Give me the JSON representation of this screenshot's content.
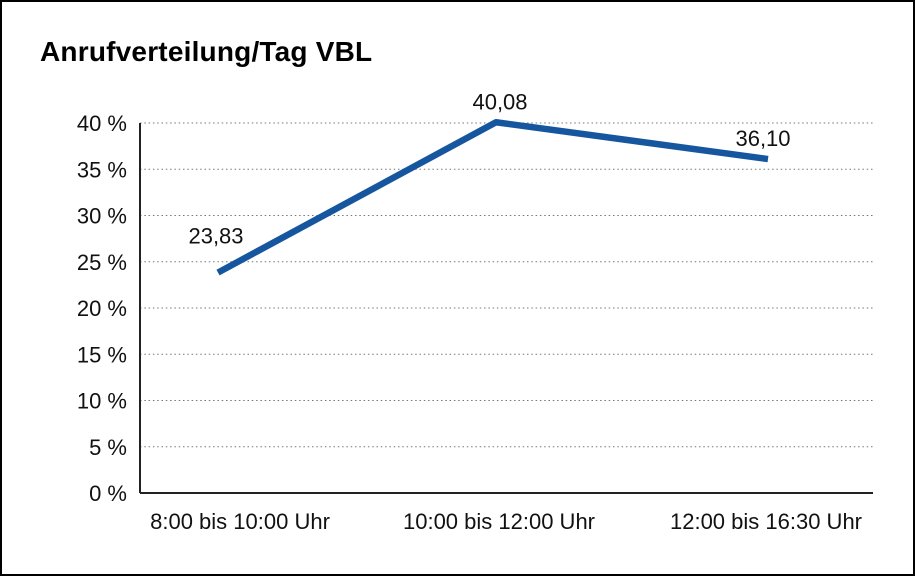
{
  "frame": {
    "background": "#ffffff",
    "border_color": "#000000"
  },
  "chart_data": {
    "type": "line",
    "title": "Anrufverteilung/Tag VBL",
    "categories": [
      "8:00 bis 10:00 Uhr",
      "10:00 bis 12:00 Uhr",
      "12:00 bis 16:30 Uhr"
    ],
    "series": [
      {
        "values": [
          23.83,
          40.08,
          36.1
        ],
        "data_labels": [
          "23,83",
          "40,08",
          "36,10"
        ],
        "color": "#15569f"
      }
    ],
    "xlabel": "",
    "ylabel": "",
    "ylim": [
      0,
      40
    ],
    "y_ticks": [
      {
        "value": 0,
        "label": "0 %"
      },
      {
        "value": 5,
        "label": "5 %"
      },
      {
        "value": 10,
        "label": "10 %"
      },
      {
        "value": 15,
        "label": "15 %"
      },
      {
        "value": 20,
        "label": "20 %"
      },
      {
        "value": 25,
        "label": "25 %"
      },
      {
        "value": 30,
        "label": "30 %"
      },
      {
        "value": 35,
        "label": "35 %"
      },
      {
        "value": 40,
        "label": "40 %"
      }
    ],
    "grid": "horizontal-dotted",
    "legend_position": "none",
    "axis_color": "#222222",
    "gridline_color": "#777777",
    "text_color": "#111111"
  }
}
